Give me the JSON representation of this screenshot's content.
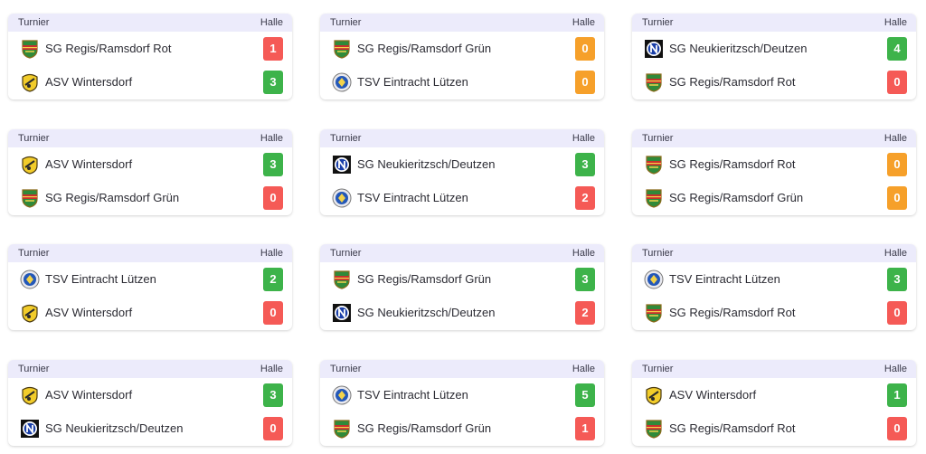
{
  "labels": {
    "competition": "Turnier",
    "venue": "Halle"
  },
  "colors": {
    "win": "#3db34a",
    "loss": "#f55a56",
    "draw": "#f6a02a",
    "header_bg": "#ecebfb"
  },
  "teams": {
    "regis_rot": {
      "name": "SG Regis/Ramsdorf Rot",
      "crest": "regis-crest-icon"
    },
    "regis_gruen": {
      "name": "SG Regis/Ramsdorf Grün",
      "crest": "regis-crest-icon"
    },
    "wintersdorf": {
      "name": "ASV Wintersdorf",
      "crest": "wintersdorf-crest-icon"
    },
    "neukieritzsch": {
      "name": "SG Neukieritzsch/Deutzen",
      "crest": "neukieritzsch-crest-icon"
    },
    "luetzen": {
      "name": "TSV Eintracht Lützen",
      "crest": "luetzen-crest-icon"
    }
  },
  "matches": [
    {
      "competition": "Turnier",
      "venue": "Halle",
      "home": {
        "name": "SG Regis/Ramsdorf Rot",
        "crest": "regis",
        "score": "1",
        "result": "loss"
      },
      "away": {
        "name": "ASV Wintersdorf",
        "crest": "wintersdorf",
        "score": "3",
        "result": "win"
      }
    },
    {
      "competition": "Turnier",
      "venue": "Halle",
      "home": {
        "name": "SG Regis/Ramsdorf Grün",
        "crest": "regis",
        "score": "0",
        "result": "draw"
      },
      "away": {
        "name": "TSV Eintracht Lützen",
        "crest": "luetzen",
        "score": "0",
        "result": "draw"
      }
    },
    {
      "competition": "Turnier",
      "venue": "Halle",
      "home": {
        "name": "SG Neukieritzsch/Deutzen",
        "crest": "neukieritzsch",
        "score": "4",
        "result": "win"
      },
      "away": {
        "name": "SG Regis/Ramsdorf Rot",
        "crest": "regis",
        "score": "0",
        "result": "loss"
      }
    },
    {
      "competition": "Turnier",
      "venue": "Halle",
      "home": {
        "name": "ASV Wintersdorf",
        "crest": "wintersdorf",
        "score": "3",
        "result": "win"
      },
      "away": {
        "name": "SG Regis/Ramsdorf Grün",
        "crest": "regis",
        "score": "0",
        "result": "loss"
      }
    },
    {
      "competition": "Turnier",
      "venue": "Halle",
      "home": {
        "name": "SG Neukieritzsch/Deutzen",
        "crest": "neukieritzsch",
        "score": "3",
        "result": "win"
      },
      "away": {
        "name": "TSV Eintracht Lützen",
        "crest": "luetzen",
        "score": "2",
        "result": "loss"
      }
    },
    {
      "competition": "Turnier",
      "venue": "Halle",
      "home": {
        "name": "SG Regis/Ramsdorf Rot",
        "crest": "regis",
        "score": "0",
        "result": "draw"
      },
      "away": {
        "name": "SG Regis/Ramsdorf Grün",
        "crest": "regis",
        "score": "0",
        "result": "draw"
      }
    },
    {
      "competition": "Turnier",
      "venue": "Halle",
      "home": {
        "name": "TSV Eintracht Lützen",
        "crest": "luetzen",
        "score": "2",
        "result": "win"
      },
      "away": {
        "name": "ASV Wintersdorf",
        "crest": "wintersdorf",
        "score": "0",
        "result": "loss"
      }
    },
    {
      "competition": "Turnier",
      "venue": "Halle",
      "home": {
        "name": "SG Regis/Ramsdorf Grün",
        "crest": "regis",
        "score": "3",
        "result": "win"
      },
      "away": {
        "name": "SG Neukieritzsch/Deutzen",
        "crest": "neukieritzsch",
        "score": "2",
        "result": "loss"
      }
    },
    {
      "competition": "Turnier",
      "venue": "Halle",
      "home": {
        "name": "TSV Eintracht Lützen",
        "crest": "luetzen",
        "score": "3",
        "result": "win"
      },
      "away": {
        "name": "SG Regis/Ramsdorf Rot",
        "crest": "regis",
        "score": "0",
        "result": "loss"
      }
    },
    {
      "competition": "Turnier",
      "venue": "Halle",
      "home": {
        "name": "ASV Wintersdorf",
        "crest": "wintersdorf",
        "score": "3",
        "result": "win"
      },
      "away": {
        "name": "SG Neukieritzsch/Deutzen",
        "crest": "neukieritzsch",
        "score": "0",
        "result": "loss"
      }
    },
    {
      "competition": "Turnier",
      "venue": "Halle",
      "home": {
        "name": "TSV Eintracht Lützen",
        "crest": "luetzen",
        "score": "5",
        "result": "win"
      },
      "away": {
        "name": "SG Regis/Ramsdorf Grün",
        "crest": "regis",
        "score": "1",
        "result": "loss"
      }
    },
    {
      "competition": "Turnier",
      "venue": "Halle",
      "home": {
        "name": "ASV Wintersdorf",
        "crest": "wintersdorf",
        "score": "1",
        "result": "win"
      },
      "away": {
        "name": "SG Regis/Ramsdorf Rot",
        "crest": "regis",
        "score": "0",
        "result": "loss"
      }
    }
  ]
}
